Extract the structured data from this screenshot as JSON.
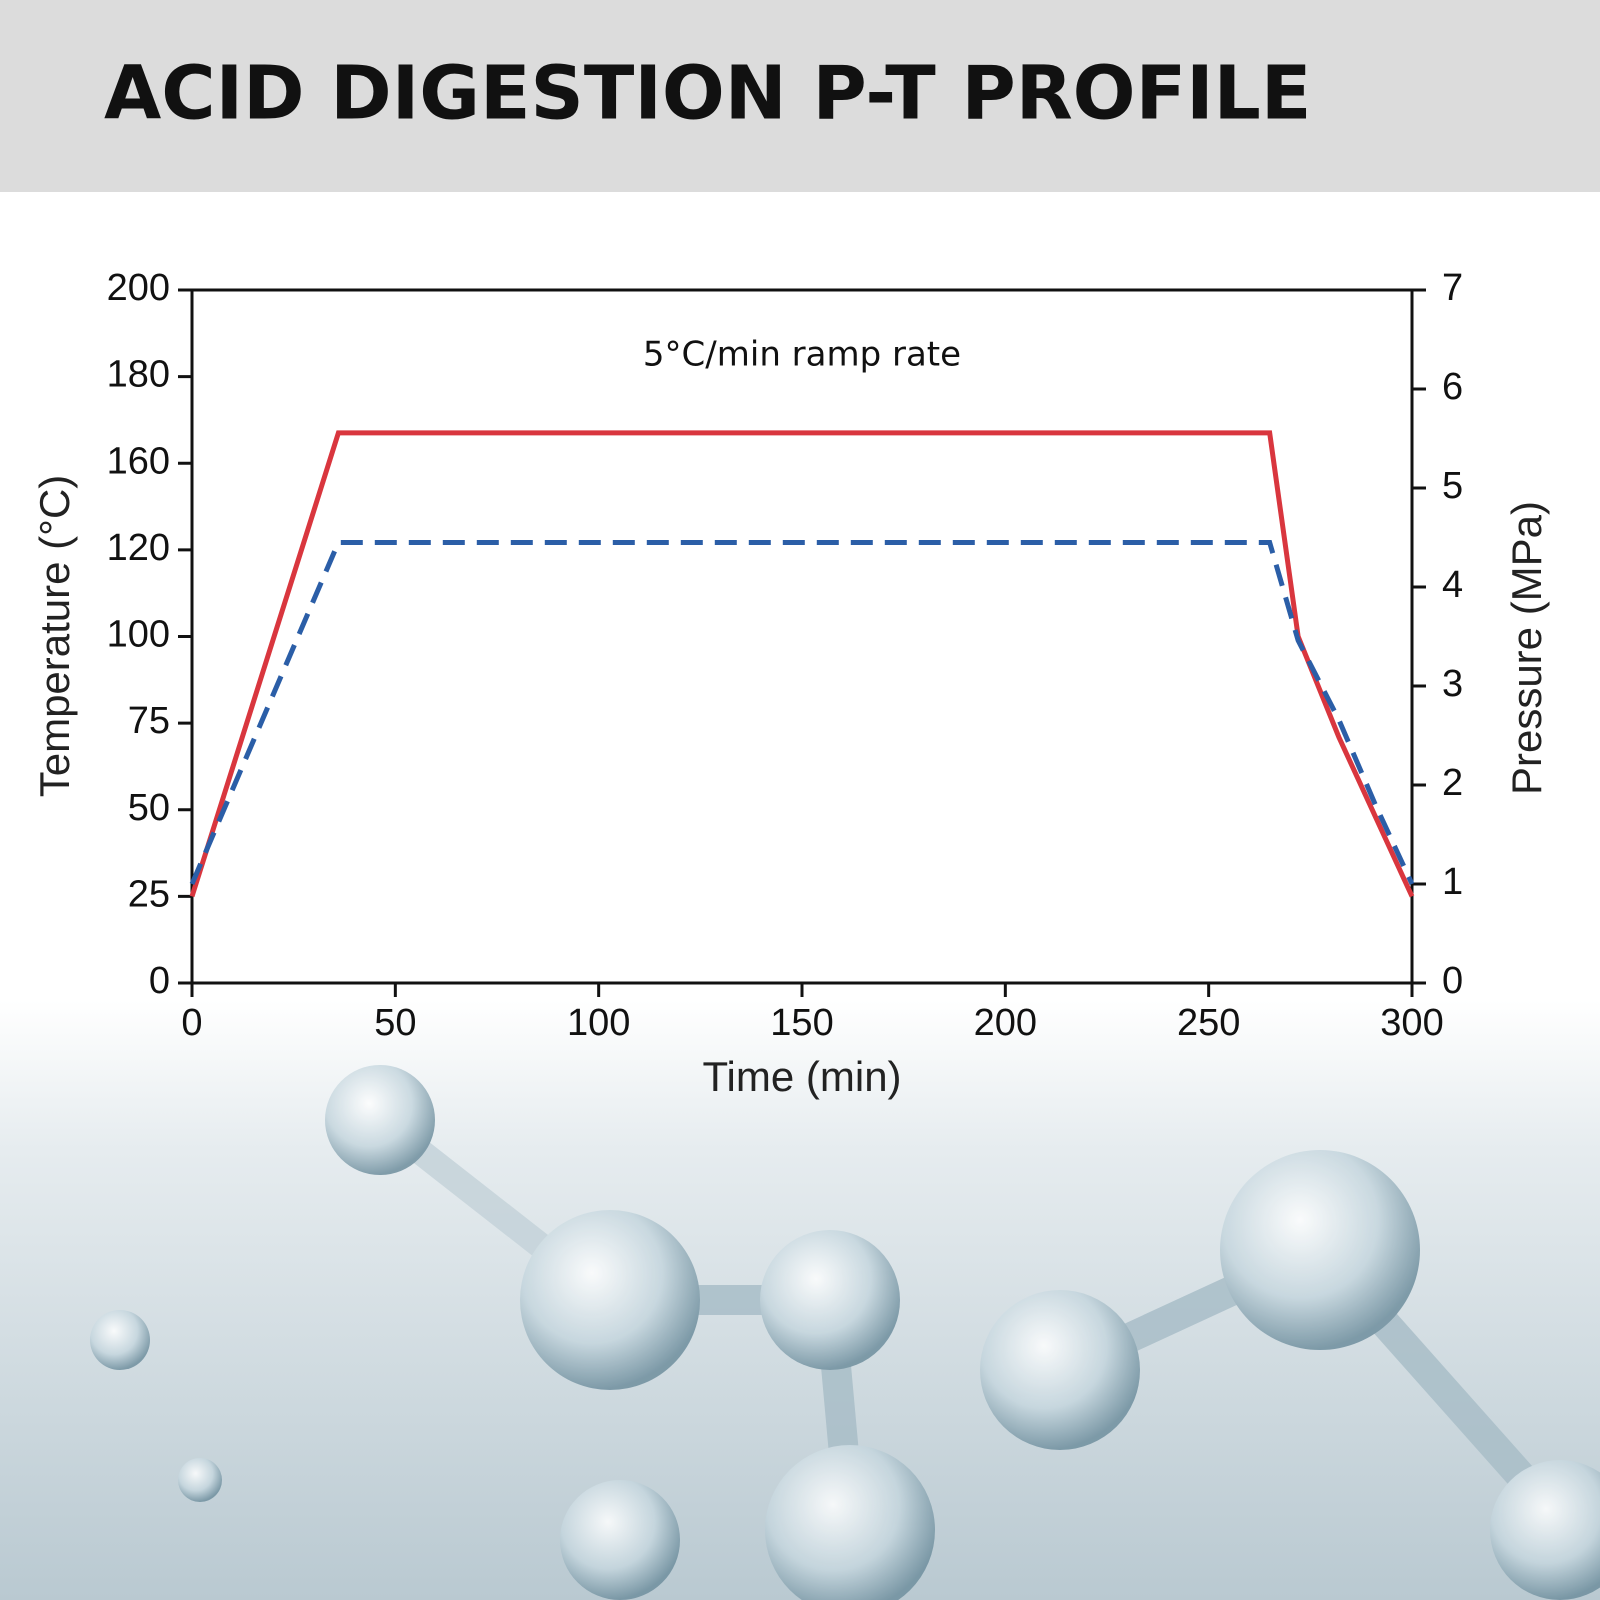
{
  "chart_data": {
    "type": "line",
    "title": "ACID DIGESTION P-T PROFILE",
    "annotation": "5°C/min ramp rate",
    "x_label": "Time (min)",
    "y_label": "Temperature (°C)",
    "y2_label": "Pressure (MPa)",
    "x": [
      0,
      36,
      265,
      272,
      282,
      291,
      300
    ],
    "xlim": [
      0,
      300
    ],
    "xticks": [
      0,
      50,
      100,
      150,
      200,
      250,
      300
    ],
    "ylim": [
      0,
      200
    ],
    "yticks": [
      0,
      25,
      50,
      75,
      100,
      120,
      160,
      180,
      200
    ],
    "y2lim": [
      0,
      7
    ],
    "y2ticks": [
      0,
      1,
      2,
      3,
      4,
      5,
      6,
      7
    ],
    "series": [
      {
        "name": "Temperature",
        "color": "#d9363e",
        "line_style": "solid",
        "values": [
          25,
          167,
          167,
          100,
          71,
          48,
          25
        ]
      },
      {
        "name": "Pressure",
        "color": "#2b5ea7",
        "line_style": "dashed",
        "axis": "y2",
        "values": [
          1,
          4.45,
          4.45,
          3.46,
          2.66,
          1.8,
          1
        ]
      }
    ]
  }
}
